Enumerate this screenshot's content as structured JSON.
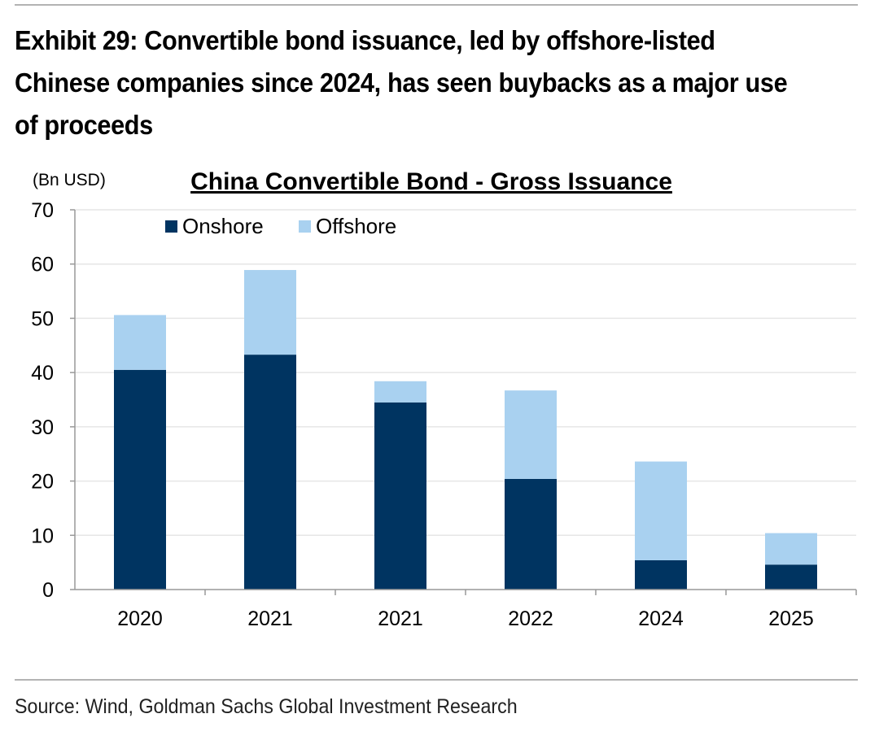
{
  "exhibit": {
    "title": "Exhibit 29: Convertible bond issuance, led by offshore-listed Chinese companies since 2024, has seen buybacks as a major use of proceeds",
    "source": "Source: Wind, Goldman Sachs Global Investment Research"
  },
  "colors": {
    "onshore": "#003461",
    "offshore": "#a9d1f0",
    "grid": "#e6e6e6",
    "axis": "#999999"
  },
  "chart_data": {
    "type": "bar",
    "stacked": true,
    "title": "China Convertible Bond - Gross Issuance",
    "ylabel": "(Bn USD)",
    "xlabel": "",
    "categories": [
      "2020",
      "2021",
      "2021",
      "2022",
      "2024",
      "2025"
    ],
    "series": [
      {
        "name": "Onshore",
        "values": [
          40.5,
          43.3,
          34.5,
          20.4,
          5.4,
          4.6
        ]
      },
      {
        "name": "Offshore",
        "values": [
          10.1,
          15.6,
          3.9,
          16.3,
          18.2,
          5.8
        ]
      }
    ],
    "ylim": [
      0,
      70
    ],
    "yticks": [
      "0",
      "10",
      "20",
      "30",
      "40",
      "50",
      "60",
      "70"
    ],
    "grid": true,
    "legend_position": "top-left"
  }
}
